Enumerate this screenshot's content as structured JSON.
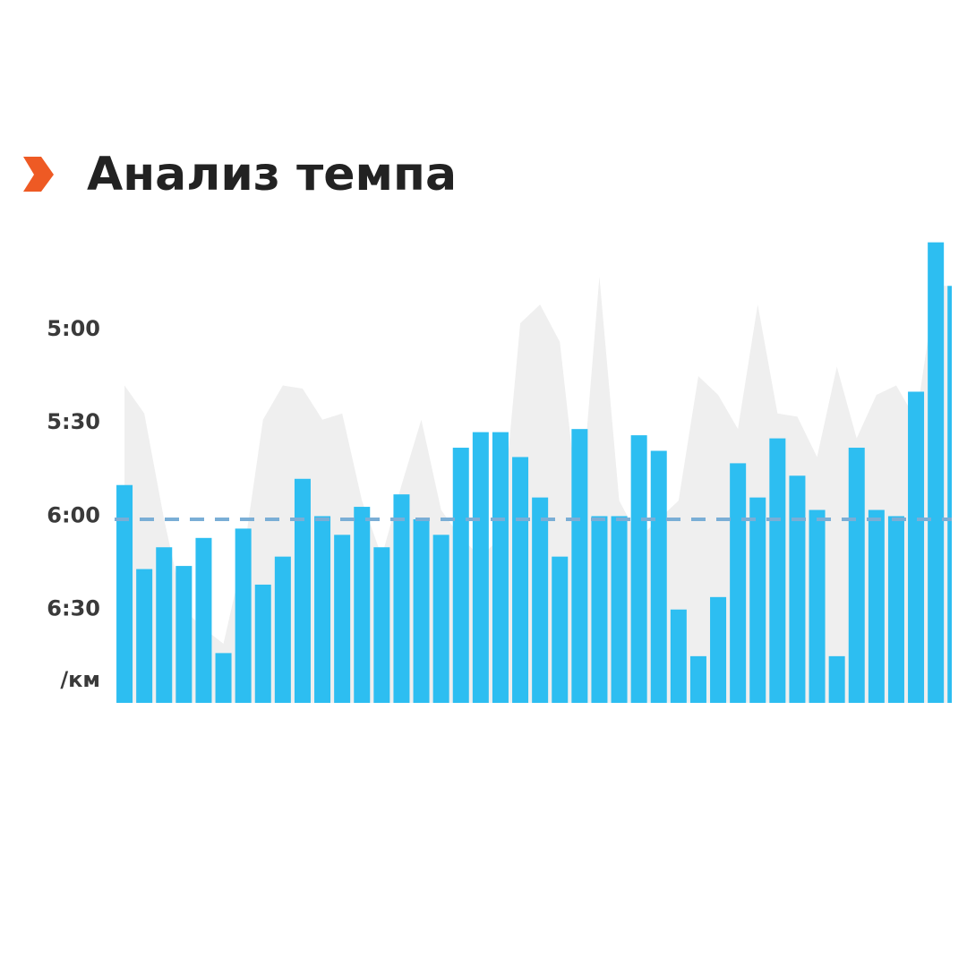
{
  "chart_data": {
    "type": "bar",
    "title": "Анализ темпа",
    "unit_label": "/км",
    "ylim": [
      420,
      270
    ],
    "yticks": [
      {
        "value": 300,
        "label": "5:00"
      },
      {
        "value": 330,
        "label": "5:30"
      },
      {
        "value": 360,
        "label": "6:00"
      },
      {
        "value": 390,
        "label": "6:30"
      }
    ],
    "series": [
      {
        "color": "#22baf0",
        "values": [
          350,
          377,
          370,
          376,
          367,
          404,
          364,
          382,
          373,
          348,
          360,
          366,
          357,
          370,
          353,
          361,
          366,
          338,
          333,
          333,
          341,
          354,
          373,
          332,
          360,
          360,
          334,
          339,
          390,
          405,
          386,
          343,
          354,
          335,
          347,
          358,
          405,
          338,
          358,
          360,
          320,
          272,
          286
        ]
      }
    ],
    "average": {
      "value": 361,
      "color": "#7aaed6"
    },
    "area": {
      "color": "#efefef",
      "values": [
        318,
        327,
        361,
        390,
        396,
        401,
        373,
        329,
        318,
        319,
        329,
        327,
        355,
        373,
        350,
        329,
        358,
        367,
        373,
        367,
        298,
        292,
        304,
        361,
        283,
        355,
        367,
        361,
        355,
        315,
        321,
        332,
        292,
        327,
        328,
        341,
        312,
        335,
        321,
        318,
        329,
        286,
        286
      ]
    }
  }
}
